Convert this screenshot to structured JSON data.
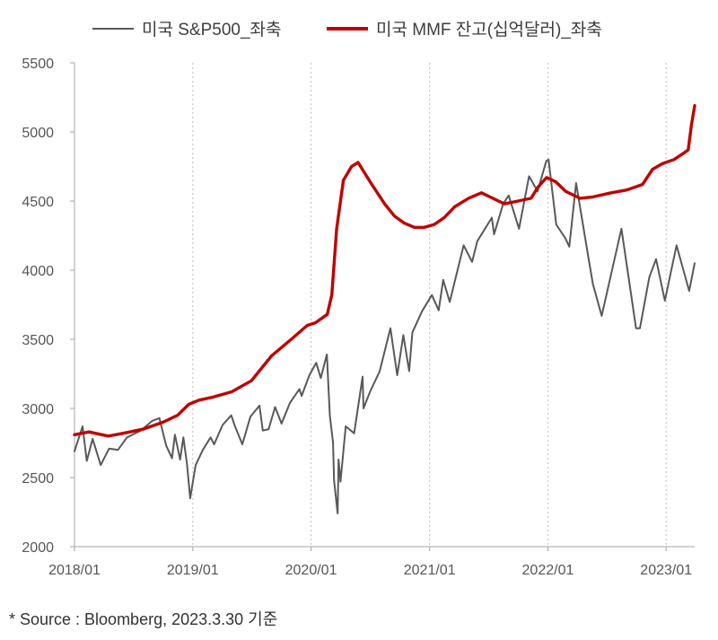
{
  "colors": {
    "sp500": "#595959",
    "mmf": "#c00000",
    "axis": "#a6a6a6",
    "grid": "#c8c8c8"
  },
  "source_note": "* Source : Bloomberg, 2023.3.30 기준",
  "chart_data": {
    "type": "line",
    "title": "",
    "xlabel": "",
    "ylabel": "",
    "ylim": [
      2000,
      5500
    ],
    "yticks": [
      2000,
      2500,
      3000,
      3500,
      4000,
      4500,
      5000,
      5500
    ],
    "xlim": [
      "2018-01-01",
      "2023-03-30"
    ],
    "xticks": [
      {
        "date": "2018-01-01",
        "label": "2018/01"
      },
      {
        "date": "2019-01-01",
        "label": "2019/01"
      },
      {
        "date": "2020-01-01",
        "label": "2020/01"
      },
      {
        "date": "2021-01-01",
        "label": "2021/01"
      },
      {
        "date": "2022-01-01",
        "label": "2022/01"
      },
      {
        "date": "2023-01-01",
        "label": "2023/01"
      }
    ],
    "grid": {
      "vertical": "dotted",
      "horizontal": false
    },
    "legend": "top",
    "series": [
      {
        "name": "미국 S&P500_좌축",
        "color": "#595959",
        "points": [
          [
            "2018-01-01",
            2690
          ],
          [
            "2018-01-26",
            2870
          ],
          [
            "2018-02-08",
            2620
          ],
          [
            "2018-02-26",
            2780
          ],
          [
            "2018-03-23",
            2590
          ],
          [
            "2018-04-18",
            2710
          ],
          [
            "2018-05-15",
            2700
          ],
          [
            "2018-06-12",
            2790
          ],
          [
            "2018-07-25",
            2840
          ],
          [
            "2018-08-29",
            2910
          ],
          [
            "2018-09-20",
            2930
          ],
          [
            "2018-10-11",
            2730
          ],
          [
            "2018-10-29",
            2640
          ],
          [
            "2018-11-07",
            2810
          ],
          [
            "2018-11-23",
            2630
          ],
          [
            "2018-12-03",
            2790
          ],
          [
            "2018-12-14",
            2600
          ],
          [
            "2018-12-24",
            2350
          ],
          [
            "2019-01-10",
            2590
          ],
          [
            "2019-02-01",
            2700
          ],
          [
            "2019-02-25",
            2790
          ],
          [
            "2019-03-08",
            2740
          ],
          [
            "2019-04-03",
            2880
          ],
          [
            "2019-04-30",
            2950
          ],
          [
            "2019-05-10",
            2880
          ],
          [
            "2019-06-03",
            2740
          ],
          [
            "2019-06-28",
            2940
          ],
          [
            "2019-07-26",
            3020
          ],
          [
            "2019-08-05",
            2840
          ],
          [
            "2019-08-23",
            2850
          ],
          [
            "2019-09-12",
            3010
          ],
          [
            "2019-10-02",
            2890
          ],
          [
            "2019-10-28",
            3040
          ],
          [
            "2019-11-26",
            3140
          ],
          [
            "2019-12-03",
            3090
          ],
          [
            "2019-12-27",
            3240
          ],
          [
            "2020-01-17",
            3330
          ],
          [
            "2020-01-31",
            3220
          ],
          [
            "2020-02-19",
            3390
          ],
          [
            "2020-02-28",
            2950
          ],
          [
            "2020-03-09",
            2750
          ],
          [
            "2020-03-12",
            2480
          ],
          [
            "2020-03-23",
            2240
          ],
          [
            "2020-03-26",
            2630
          ],
          [
            "2020-04-01",
            2470
          ],
          [
            "2020-04-17",
            2870
          ],
          [
            "2020-05-13",
            2820
          ],
          [
            "2020-06-08",
            3230
          ],
          [
            "2020-06-11",
            3000
          ],
          [
            "2020-07-01",
            3120
          ],
          [
            "2020-07-31",
            3270
          ],
          [
            "2020-09-02",
            3580
          ],
          [
            "2020-09-23",
            3240
          ],
          [
            "2020-10-12",
            3530
          ],
          [
            "2020-10-30",
            3270
          ],
          [
            "2020-11-09",
            3550
          ],
          [
            "2020-12-08",
            3700
          ],
          [
            "2021-01-08",
            3820
          ],
          [
            "2021-01-29",
            3710
          ],
          [
            "2021-02-12",
            3930
          ],
          [
            "2021-03-04",
            3770
          ],
          [
            "2021-04-16",
            4180
          ],
          [
            "2021-05-12",
            4060
          ],
          [
            "2021-05-28",
            4210
          ],
          [
            "2021-07-12",
            4380
          ],
          [
            "2021-07-19",
            4260
          ],
          [
            "2021-08-16",
            4480
          ],
          [
            "2021-09-02",
            4540
          ],
          [
            "2021-10-04",
            4300
          ],
          [
            "2021-11-04",
            4680
          ],
          [
            "2021-11-30",
            4570
          ],
          [
            "2021-12-27",
            4790
          ],
          [
            "2022-01-03",
            4800
          ],
          [
            "2022-01-27",
            4330
          ],
          [
            "2022-02-24",
            4230
          ],
          [
            "2022-03-08",
            4170
          ],
          [
            "2022-03-29",
            4630
          ],
          [
            "2022-05-02",
            4150
          ],
          [
            "2022-05-20",
            3900
          ],
          [
            "2022-06-16",
            3670
          ],
          [
            "2022-08-16",
            4300
          ],
          [
            "2022-09-30",
            3580
          ],
          [
            "2022-10-12",
            3580
          ],
          [
            "2022-11-10",
            3950
          ],
          [
            "2022-12-01",
            4080
          ],
          [
            "2022-12-28",
            3780
          ],
          [
            "2023-02-02",
            4180
          ],
          [
            "2023-03-13",
            3850
          ],
          [
            "2023-03-30",
            4050
          ]
        ]
      },
      {
        "name": "미국 MMF 잔고(십억달러)_좌축",
        "color": "#c00000",
        "points": [
          [
            "2018-01-01",
            2810
          ],
          [
            "2018-02-15",
            2830
          ],
          [
            "2018-04-15",
            2800
          ],
          [
            "2018-06-01",
            2820
          ],
          [
            "2018-08-01",
            2850
          ],
          [
            "2018-10-01",
            2900
          ],
          [
            "2018-11-15",
            2950
          ],
          [
            "2018-12-20",
            3030
          ],
          [
            "2019-01-20",
            3060
          ],
          [
            "2019-03-01",
            3080
          ],
          [
            "2019-05-01",
            3120
          ],
          [
            "2019-07-01",
            3200
          ],
          [
            "2019-09-01",
            3380
          ],
          [
            "2019-11-01",
            3500
          ],
          [
            "2019-12-20",
            3600
          ],
          [
            "2020-01-15",
            3620
          ],
          [
            "2020-02-20",
            3680
          ],
          [
            "2020-03-05",
            3820
          ],
          [
            "2020-03-20",
            4300
          ],
          [
            "2020-04-10",
            4650
          ],
          [
            "2020-05-05",
            4750
          ],
          [
            "2020-05-25",
            4780
          ],
          [
            "2020-07-01",
            4640
          ],
          [
            "2020-08-15",
            4480
          ],
          [
            "2020-09-15",
            4390
          ],
          [
            "2020-10-15",
            4340
          ],
          [
            "2020-11-15",
            4310
          ],
          [
            "2020-12-15",
            4310
          ],
          [
            "2021-01-15",
            4330
          ],
          [
            "2021-02-15",
            4380
          ],
          [
            "2021-03-20",
            4460
          ],
          [
            "2021-05-01",
            4520
          ],
          [
            "2021-06-10",
            4560
          ],
          [
            "2021-07-15",
            4520
          ],
          [
            "2021-08-20",
            4480
          ],
          [
            "2021-10-01",
            4500
          ],
          [
            "2021-11-10",
            4520
          ],
          [
            "2021-12-01",
            4600
          ],
          [
            "2021-12-28",
            4670
          ],
          [
            "2022-01-25",
            4640
          ],
          [
            "2022-02-25",
            4570
          ],
          [
            "2022-04-10",
            4520
          ],
          [
            "2022-05-20",
            4530
          ],
          [
            "2022-07-15",
            4560
          ],
          [
            "2022-09-01",
            4580
          ],
          [
            "2022-10-20",
            4620
          ],
          [
            "2022-11-20",
            4730
          ],
          [
            "2022-12-20",
            4770
          ],
          [
            "2023-01-25",
            4800
          ],
          [
            "2023-02-20",
            4840
          ],
          [
            "2023-03-10",
            4870
          ],
          [
            "2023-03-20",
            5050
          ],
          [
            "2023-03-30",
            5190
          ]
        ]
      }
    ]
  }
}
